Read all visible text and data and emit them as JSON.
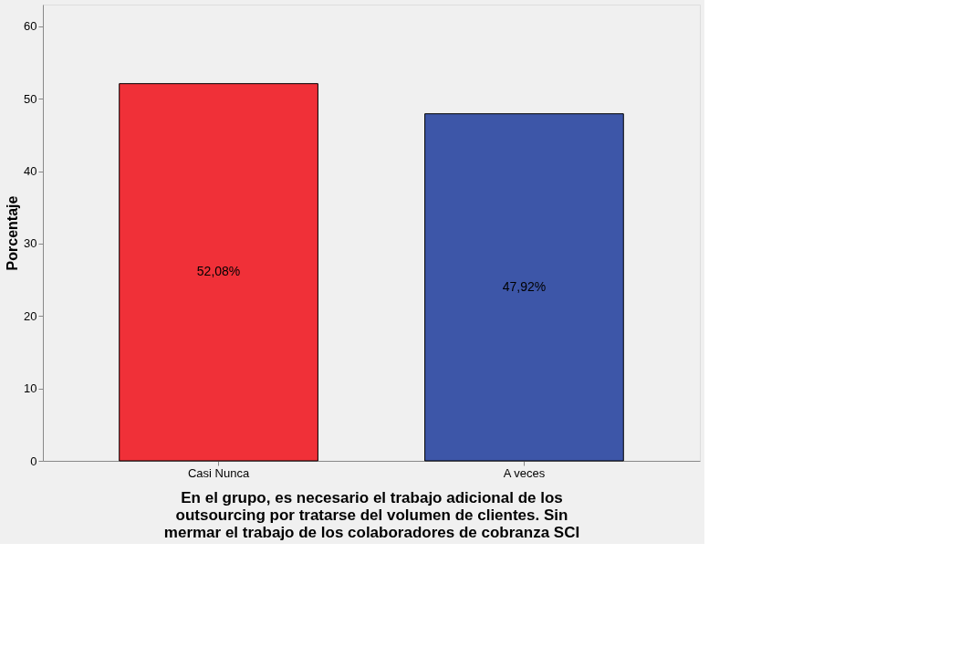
{
  "chart_data": {
    "type": "bar",
    "categories": [
      "Casi Nunca",
      "A veces"
    ],
    "values": [
      52.08,
      47.92
    ],
    "colors": [
      "#f03038",
      "#3d56a8"
    ],
    "value_labels": [
      "52,08%",
      "47,92%"
    ],
    "ylabel": "Porcentaje",
    "xlabel": "En el grupo, es necesario el trabajo adicional de los\noutsourcing por tratarse del volumen de clientes. Sin\nmermar el trabajo de los colaboradores de cobranza SCI",
    "ylim": [
      0,
      63
    ],
    "yticks": [
      0,
      10,
      20,
      30,
      40,
      50,
      60
    ],
    "grid": false,
    "legend": false
  }
}
